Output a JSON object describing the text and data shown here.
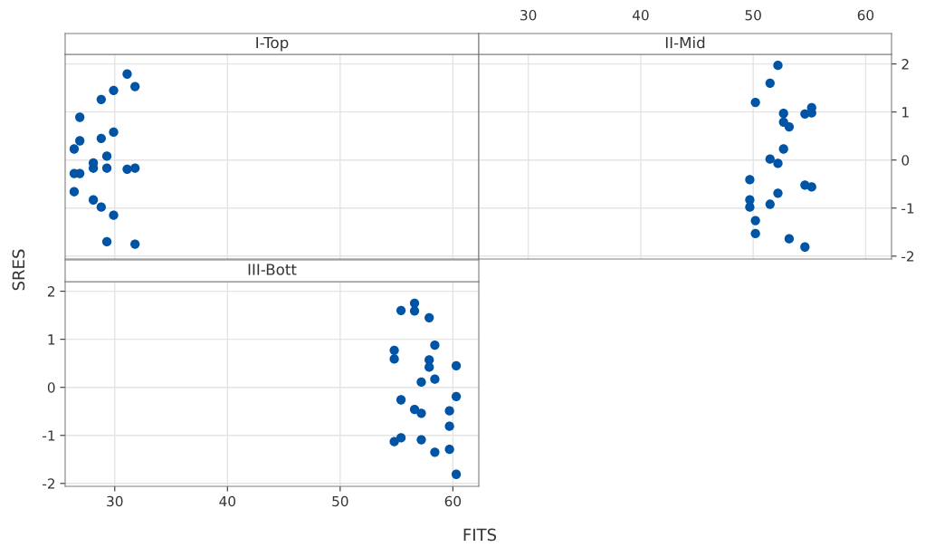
{
  "chart_data": [
    {
      "type": "scatter",
      "title": "I-Top",
      "x": [
        31.1,
        31.8,
        29.9,
        28.8,
        26.9,
        29.9,
        28.8,
        26.9,
        26.4,
        29.3,
        28.1,
        28.1,
        29.3,
        31.1,
        31.8,
        26.4,
        26.9,
        26.4,
        28.1,
        28.8,
        29.9,
        29.3,
        31.8
      ],
      "series": [
        {
          "color": "#0054a6",
          "values": [
            1.79,
            1.53,
            1.45,
            1.26,
            0.89,
            0.58,
            0.45,
            0.4,
            0.23,
            0.08,
            -0.06,
            -0.17,
            -0.17,
            -0.19,
            -0.17,
            -0.28,
            -0.28,
            -0.66,
            -0.83,
            -0.98,
            -1.15,
            -1.7,
            -1.75
          ]
        }
      ],
      "xlim": [
        25.6,
        62.3
      ],
      "ylim": [
        -2.06,
        2.2
      ],
      "xticks": [
        30,
        40,
        50,
        60
      ],
      "yticks": [
        -2,
        -1,
        0,
        1,
        2
      ],
      "grid": true,
      "marker": "circle",
      "tick_labels": false
    },
    {
      "type": "scatter",
      "title": "II-Mid",
      "x": [
        52.2,
        51.5,
        50.2,
        52.7,
        54.6,
        55.2,
        55.2,
        52.7,
        53.2,
        52.7,
        51.5,
        52.2,
        49.7,
        54.6,
        55.2,
        52.2,
        49.7,
        49.7,
        51.5,
        50.2,
        50.2,
        53.2,
        54.6
      ],
      "series": [
        {
          "color": "#0054a6",
          "values": [
            1.97,
            1.6,
            1.2,
            0.97,
            0.96,
            1.09,
            0.98,
            0.79,
            0.69,
            0.23,
            0.02,
            -0.07,
            -0.41,
            -0.52,
            -0.56,
            -0.69,
            -0.83,
            -0.98,
            -0.92,
            -1.26,
            -1.53,
            -1.64,
            -1.81
          ]
        }
      ],
      "xlim": [
        25.6,
        62.3
      ],
      "ylim": [
        -2.06,
        2.2
      ],
      "xticks": [
        30,
        40,
        50,
        60
      ],
      "yticks": [
        -2,
        -1,
        0,
        1,
        2
      ],
      "grid": true,
      "marker": "circle"
    },
    {
      "type": "scatter",
      "title": "III-Bott",
      "xlabel": "FITS",
      "ylabel": "SRES",
      "x": [
        56.6,
        55.4,
        56.6,
        57.9,
        58.4,
        54.8,
        54.8,
        57.9,
        57.9,
        60.3,
        57.2,
        58.4,
        55.4,
        60.3,
        56.6,
        57.2,
        59.7,
        59.7,
        54.8,
        55.4,
        57.2,
        58.4,
        59.7,
        60.3
      ],
      "series": [
        {
          "color": "#0054a6",
          "values": [
            1.75,
            1.6,
            1.59,
            1.45,
            0.88,
            0.77,
            0.59,
            0.57,
            0.42,
            0.45,
            0.11,
            0.17,
            -0.26,
            -0.19,
            -0.46,
            -0.54,
            -0.49,
            -0.81,
            -1.13,
            -1.05,
            -1.09,
            -1.35,
            -1.29,
            -1.81
          ]
        }
      ],
      "xlim": [
        25.6,
        62.3
      ],
      "ylim": [
        -2.06,
        2.2
      ],
      "xticks": [
        30,
        40,
        50,
        60
      ],
      "yticks": [
        -2,
        -1,
        0,
        1,
        2
      ],
      "grid": true,
      "marker": "circle"
    }
  ]
}
